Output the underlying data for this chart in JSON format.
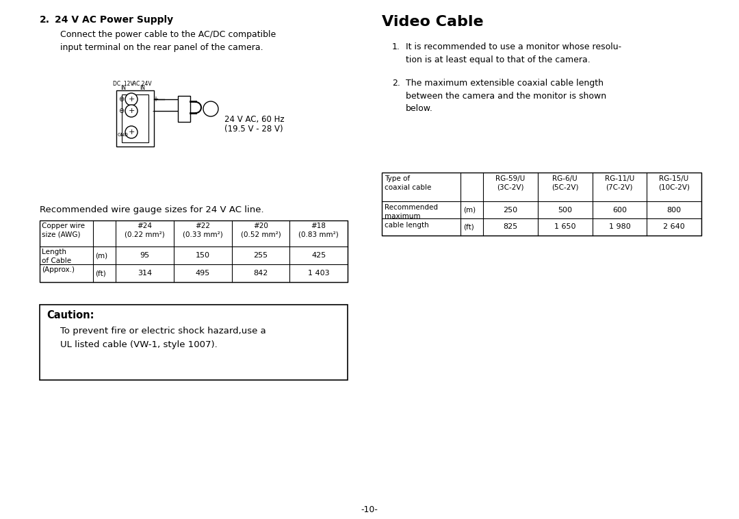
{
  "bg_color": "#ffffff",
  "page_number": "-10-",
  "left": {
    "heading": "24 V AC Power Supply",
    "para": "Connect the power cable to the AC/DC compatible\ninput terminal on the rear panel of the camera.",
    "cap1": "24 V AC, 60 Hz",
    "cap2": "(19.5 V - 28 V)",
    "wire_heading": "Recommended wire gauge sizes for 24 V AC line.",
    "wire_col_headers": [
      "#24\n(0.22 mm²)",
      "#22\n(0.33 mm²)",
      "#20\n(0.52 mm²)",
      "#18\n(0.83 mm²)"
    ],
    "wire_row1": "Copper wire\nsize (AWG)",
    "wire_row2": "Length\nof Cable\n(Approx.)",
    "wire_units": [
      "(m)",
      "(ft)"
    ],
    "wire_m": [
      "95",
      "150",
      "255",
      "425"
    ],
    "wire_ft": [
      "314",
      "495",
      "842",
      "1 403"
    ],
    "caution_title": "Caution:",
    "caution1": "To prevent fire or electric shock hazard,use a",
    "caution2": "UL listed cable (VW-1, style 1007)."
  },
  "right": {
    "title": "Video Cable",
    "item1": "It is recommended to use a monitor whose resolu-\ntion is at least equal to that of the camera.",
    "item2": "The maximum extensible coaxial cable length\nbetween the camera and the monitor is shown\nbelow.",
    "cable_col_headers": [
      "RG-59/U\n(3C-2V)",
      "RG-6/U\n(5C-2V)",
      "RG-11/U\n(7C-2V)",
      "RG-15/U\n(10C-2V)"
    ],
    "cable_row1": "Type of\ncoaxial cable",
    "cable_row2": "Recommended\nmaximum\ncable length",
    "cable_units": [
      "(m)",
      "(ft)"
    ],
    "cable_m": [
      "250",
      "500",
      "600",
      "800"
    ],
    "cable_ft": [
      "825",
      "1 650",
      "1 980",
      "2 640"
    ]
  }
}
